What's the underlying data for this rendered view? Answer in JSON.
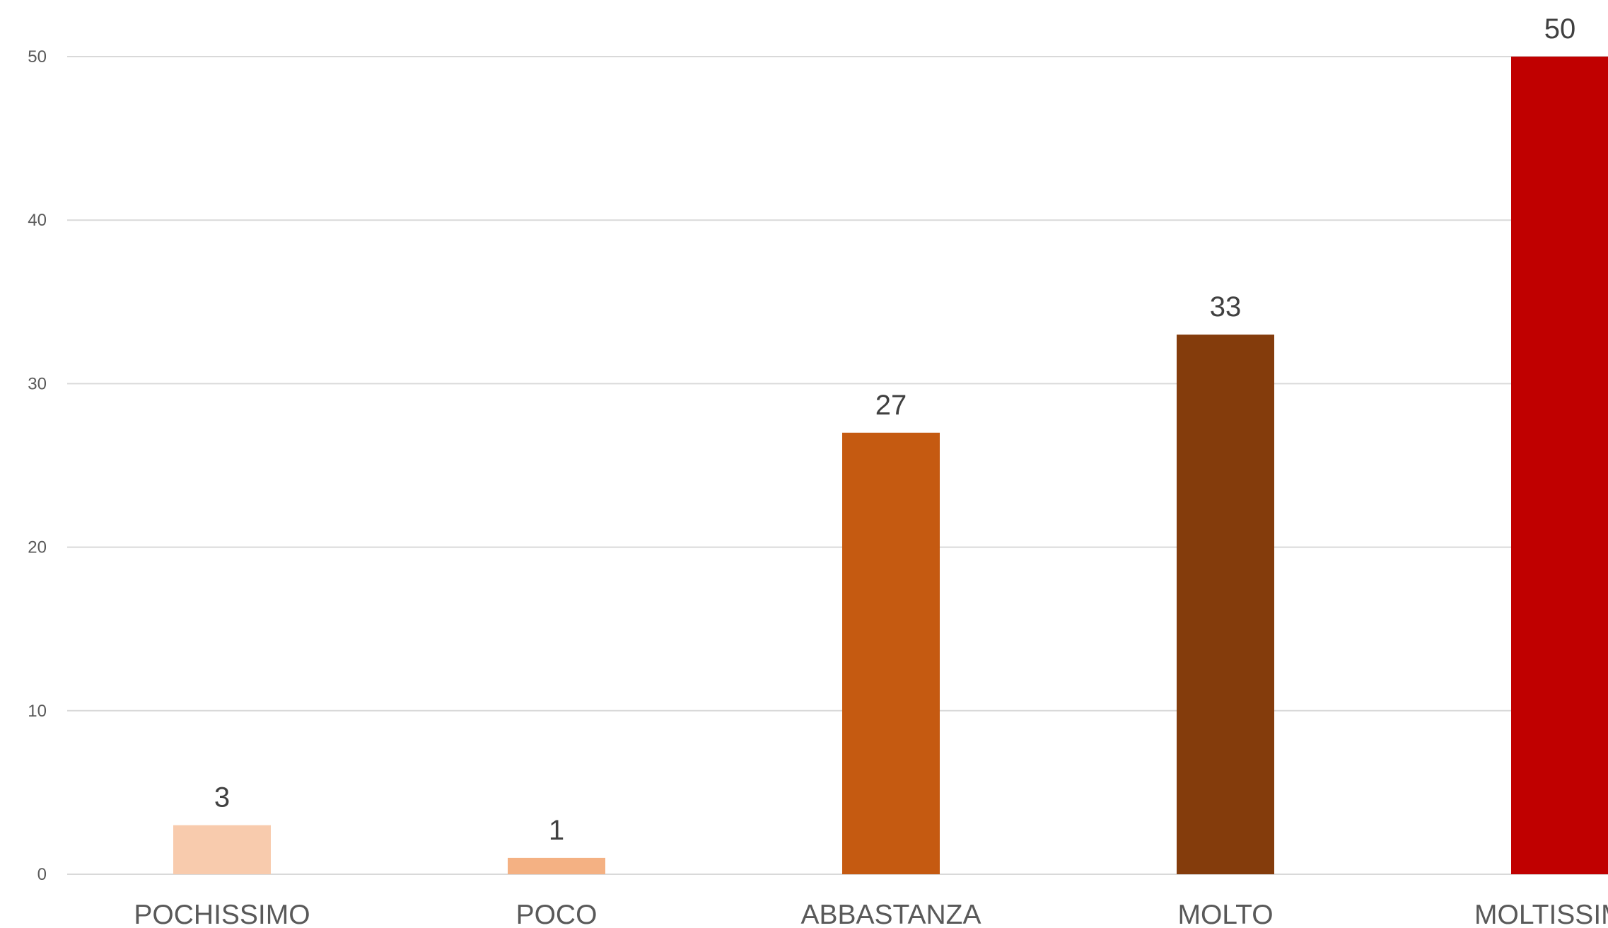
{
  "chart_data": {
    "type": "bar",
    "categories": [
      "POCHISSIMO",
      "POCO",
      "ABBASTANZA",
      "MOLTO",
      "MOLTISSIMO"
    ],
    "values": [
      3,
      1,
      27,
      33,
      50
    ],
    "colors": [
      "#f8cbad",
      "#f4b183",
      "#c55a11",
      "#843c0c",
      "#c00000"
    ],
    "ylim": [
      0,
      50
    ],
    "yticks": [
      0,
      10,
      20,
      30,
      40,
      50
    ],
    "grid": true,
    "data_labels": true,
    "title": "",
    "xlabel": "",
    "ylabel": ""
  }
}
